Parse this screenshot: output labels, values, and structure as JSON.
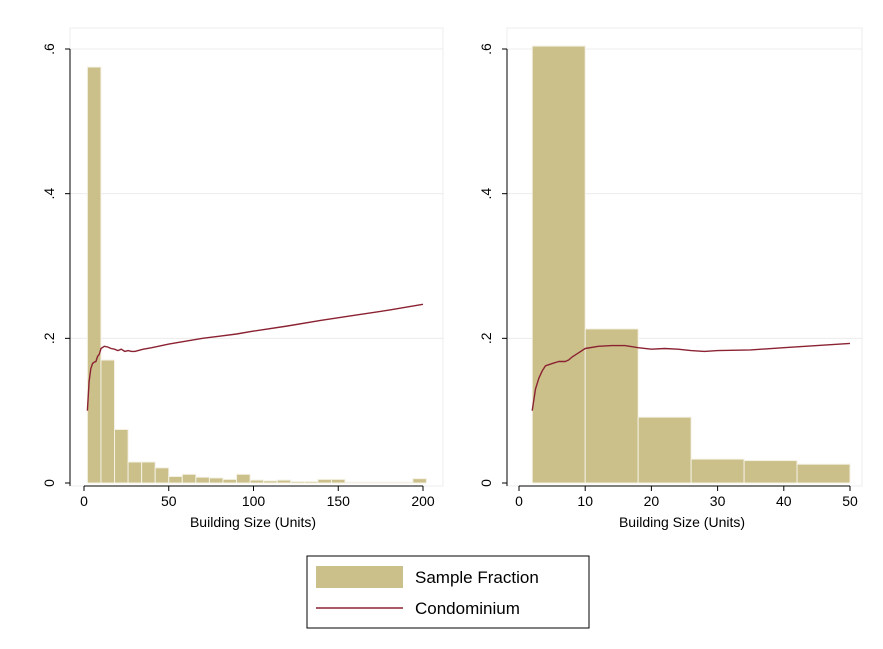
{
  "colors": {
    "bar_fill": "#cbc08a",
    "bar_edge": "#f4f1e4",
    "line": "#8b2232",
    "grid": "#ececec",
    "frame": "#ececec",
    "axis": "#000000"
  },
  "legend": {
    "items": [
      {
        "label": "Sample Fraction",
        "swatch": "bar"
      },
      {
        "label": "Condominium",
        "swatch": "line"
      }
    ]
  },
  "chart_data": [
    {
      "type": "bar",
      "xlabel": "Building Size (Units)",
      "ylabel": "",
      "xlim": [
        0,
        200
      ],
      "ylim": [
        0,
        0.6
      ],
      "xticks": [
        0,
        50,
        100,
        150,
        200
      ],
      "xtick_labels": [
        "0",
        "50",
        "100",
        "150",
        "200"
      ],
      "yticks": [
        0,
        0.2,
        0.4,
        0.6
      ],
      "ytick_labels": [
        "0",
        ".2",
        ".4",
        ".6"
      ],
      "grid": true,
      "bars": [
        {
          "x0": 2,
          "x1": 10,
          "value": 0.575
        },
        {
          "x0": 10,
          "x1": 18,
          "value": 0.17
        },
        {
          "x0": 18,
          "x1": 26,
          "value": 0.074
        },
        {
          "x0": 26,
          "x1": 34,
          "value": 0.029
        },
        {
          "x0": 34,
          "x1": 42,
          "value": 0.029
        },
        {
          "x0": 42,
          "x1": 50,
          "value": 0.021
        },
        {
          "x0": 50,
          "x1": 58,
          "value": 0.009
        },
        {
          "x0": 58,
          "x1": 66,
          "value": 0.012
        },
        {
          "x0": 66,
          "x1": 74,
          "value": 0.008
        },
        {
          "x0": 74,
          "x1": 82,
          "value": 0.007
        },
        {
          "x0": 82,
          "x1": 90,
          "value": 0.005
        },
        {
          "x0": 90,
          "x1": 98,
          "value": 0.012
        },
        {
          "x0": 98,
          "x1": 106,
          "value": 0.004
        },
        {
          "x0": 106,
          "x1": 114,
          "value": 0.003
        },
        {
          "x0": 114,
          "x1": 122,
          "value": 0.004
        },
        {
          "x0": 122,
          "x1": 130,
          "value": 0.002
        },
        {
          "x0": 130,
          "x1": 138,
          "value": 0.002
        },
        {
          "x0": 138,
          "x1": 146,
          "value": 0.005
        },
        {
          "x0": 146,
          "x1": 154,
          "value": 0.005
        },
        {
          "x0": 154,
          "x1": 162,
          "value": 0.001
        },
        {
          "x0": 162,
          "x1": 170,
          "value": 0.001
        },
        {
          "x0": 170,
          "x1": 178,
          "value": 0.001
        },
        {
          "x0": 178,
          "x1": 186,
          "value": 0.001
        },
        {
          "x0": 186,
          "x1": 194,
          "value": 0.001
        },
        {
          "x0": 194,
          "x1": 202,
          "value": 0.006
        }
      ],
      "series": [
        {
          "name": "Condominium",
          "x": [
            2,
            3,
            4,
            5,
            6,
            7,
            8,
            9,
            10,
            12,
            14,
            16,
            18,
            20,
            22,
            24,
            26,
            28,
            30,
            35,
            40,
            50,
            60,
            70,
            80,
            90,
            100,
            120,
            140,
            160,
            180,
            200
          ],
          "y": [
            0.1,
            0.14,
            0.158,
            0.165,
            0.167,
            0.168,
            0.175,
            0.178,
            0.186,
            0.189,
            0.188,
            0.186,
            0.185,
            0.183,
            0.185,
            0.182,
            0.183,
            0.182,
            0.182,
            0.185,
            0.187,
            0.192,
            0.196,
            0.2,
            0.203,
            0.206,
            0.21,
            0.217,
            0.225,
            0.232,
            0.239,
            0.247
          ]
        }
      ]
    },
    {
      "type": "bar",
      "xlabel": "Building Size (Units)",
      "ylabel": "",
      "xlim": [
        0,
        50
      ],
      "ylim": [
        0,
        0.6
      ],
      "xticks": [
        0,
        10,
        20,
        30,
        40,
        50
      ],
      "xtick_labels": [
        "0",
        "10",
        "20",
        "30",
        "40",
        "50"
      ],
      "yticks": [
        0,
        0.2,
        0.4,
        0.6
      ],
      "ytick_labels": [
        "0",
        ".2",
        ".4",
        ".6"
      ],
      "grid": true,
      "bars": [
        {
          "x0": 2,
          "x1": 10,
          "value": 0.604
        },
        {
          "x0": 10,
          "x1": 18,
          "value": 0.213
        },
        {
          "x0": 18,
          "x1": 26,
          "value": 0.091
        },
        {
          "x0": 26,
          "x1": 34,
          "value": 0.033
        },
        {
          "x0": 34,
          "x1": 42,
          "value": 0.031
        },
        {
          "x0": 42,
          "x1": 50,
          "value": 0.026
        }
      ],
      "series": [
        {
          "name": "Condominium",
          "x": [
            2,
            2.5,
            3,
            3.5,
            4,
            5,
            6,
            7,
            7.5,
            8,
            9,
            10,
            12,
            14,
            16,
            18,
            20,
            22,
            24,
            26,
            28,
            30,
            35,
            40,
            45,
            50
          ],
          "y": [
            0.1,
            0.13,
            0.145,
            0.155,
            0.162,
            0.165,
            0.168,
            0.168,
            0.17,
            0.174,
            0.18,
            0.186,
            0.189,
            0.19,
            0.19,
            0.187,
            0.185,
            0.186,
            0.185,
            0.183,
            0.182,
            0.183,
            0.184,
            0.187,
            0.19,
            0.193
          ]
        }
      ]
    }
  ]
}
